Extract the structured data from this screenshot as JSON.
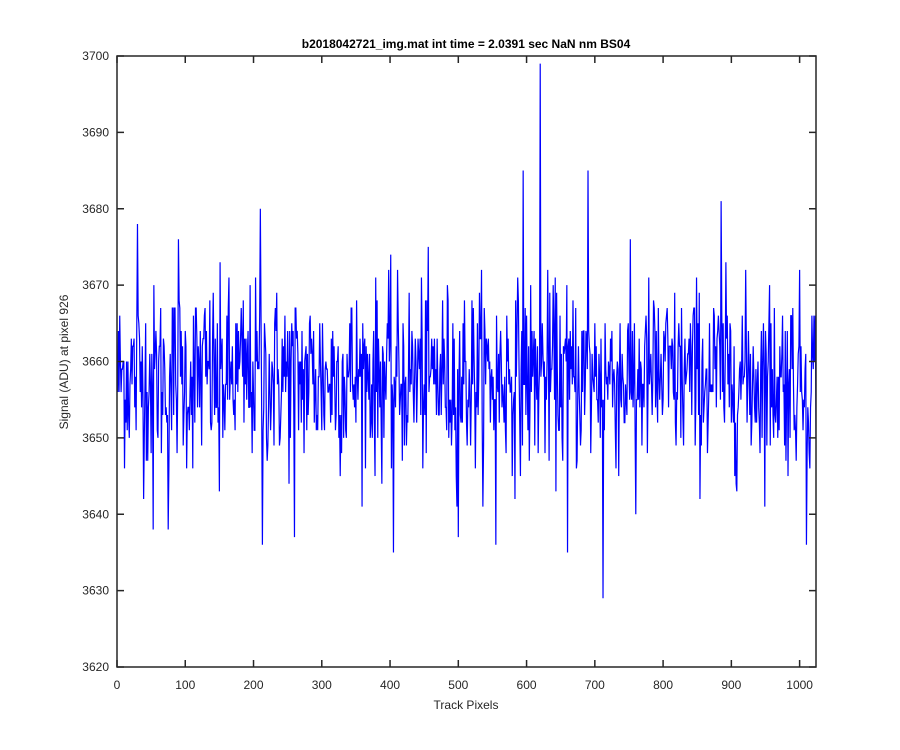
{
  "chart_data": {
    "type": "line",
    "title": "b2018042721_img.mat int time = 2.0391 sec  NaN nm BS04",
    "xlabel": "Track Pixels",
    "ylabel": "Signal (ADU) at pixel 926",
    "xlim": [
      0,
      1024
    ],
    "ylim": [
      3620,
      3700
    ],
    "xticks": [
      0,
      100,
      200,
      300,
      400,
      500,
      600,
      700,
      800,
      900,
      1000
    ],
    "yticks": [
      3620,
      3630,
      3640,
      3650,
      3660,
      3670,
      3680,
      3690,
      3700
    ],
    "grid": false,
    "box": true,
    "series": [
      {
        "color": "#0000ff",
        "n_points": 1024,
        "x_start": 1,
        "x_step": 1,
        "baseline": 3658,
        "noise_std": 6,
        "spikes": [
          {
            "x": 30,
            "y": 3678
          },
          {
            "x": 53,
            "y": 3638
          },
          {
            "x": 75,
            "y": 3638
          },
          {
            "x": 90,
            "y": 3676
          },
          {
            "x": 150,
            "y": 3643
          },
          {
            "x": 210,
            "y": 3680
          },
          {
            "x": 213,
            "y": 3636
          },
          {
            "x": 260,
            "y": 3637
          },
          {
            "x": 405,
            "y": 3635
          },
          {
            "x": 500,
            "y": 3637
          },
          {
            "x": 555,
            "y": 3636
          },
          {
            "x": 595,
            "y": 3685
          },
          {
            "x": 620,
            "y": 3699
          },
          {
            "x": 660,
            "y": 3635
          },
          {
            "x": 690,
            "y": 3685
          },
          {
            "x": 712,
            "y": 3629
          },
          {
            "x": 760,
            "y": 3640
          },
          {
            "x": 885,
            "y": 3681
          },
          {
            "x": 1010,
            "y": 3636
          }
        ]
      }
    ]
  }
}
